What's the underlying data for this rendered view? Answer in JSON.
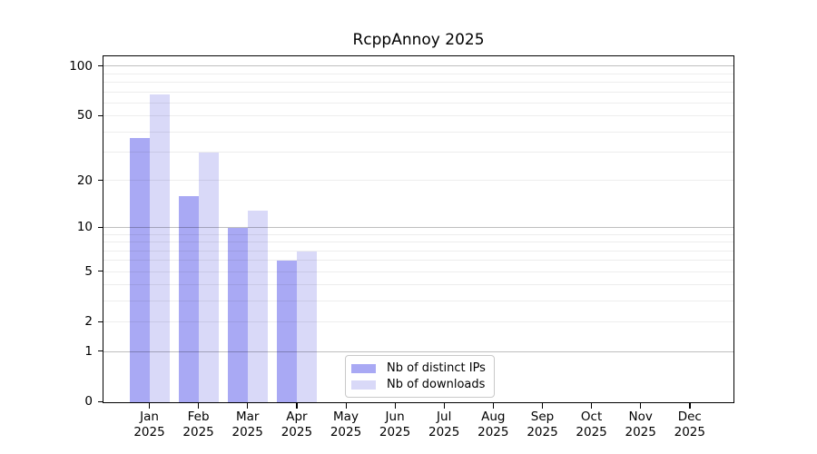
{
  "chart_data": {
    "type": "bar",
    "title": "RcppAnnoy 2025",
    "year": "2025",
    "categories": [
      "Jan",
      "Feb",
      "Mar",
      "Apr",
      "May",
      "Jun",
      "Jul",
      "Aug",
      "Sep",
      "Oct",
      "Nov",
      "Dec"
    ],
    "series": [
      {
        "name": "Nb of distinct IPs",
        "color": "#a9a9f4",
        "values": [
          37,
          16,
          10,
          6,
          0,
          0,
          0,
          0,
          0,
          0,
          0,
          0
        ]
      },
      {
        "name": "Nb of downloads",
        "color": "#d9d9f8",
        "values": [
          68,
          30,
          13,
          7,
          0,
          0,
          0,
          0,
          0,
          0,
          0,
          0
        ]
      }
    ],
    "yscale": "log1p",
    "ylim": [
      0,
      114
    ],
    "yticks": [
      100,
      50,
      20,
      10,
      5,
      2,
      1,
      0
    ],
    "grid_minor": [
      2,
      3,
      4,
      5,
      6,
      7,
      8,
      9,
      20,
      30,
      40,
      50,
      60,
      70,
      80,
      90
    ],
    "grid_major": [
      1,
      10,
      100
    ],
    "grid": "on",
    "legend_position": "lower-center"
  }
}
